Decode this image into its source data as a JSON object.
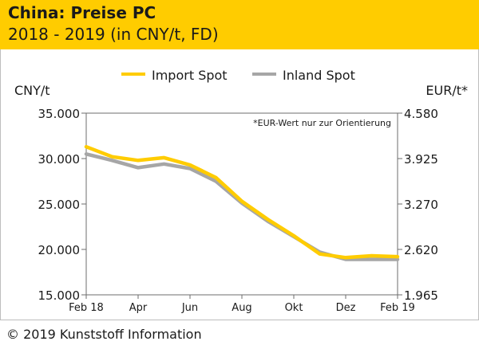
{
  "header": {
    "title": "China: Preise PC",
    "subtitle": "2018 - 2019 (in CNY/t, FD)"
  },
  "footer": {
    "credit": "© 2019 Kunststoff Information"
  },
  "chart_data": {
    "type": "line",
    "title": "China: Preise PC",
    "subtitle": "2018 - 2019 (in CNY/t, FD)",
    "ylabel_left": "CNY/t",
    "ylabel_right": "EUR/t*",
    "annotation": "*EUR-Wert nur zur Orientierung",
    "ylim": [
      15000,
      35000
    ],
    "y_ticks": [
      "35.000",
      "30.000",
      "25.000",
      "20.000",
      "15.000"
    ],
    "y_ticks_right": [
      "4.580",
      "3.925",
      "3.270",
      "2.620",
      "1.965"
    ],
    "x_ticks": [
      "Feb 18",
      "Apr",
      "Jun",
      "Aug",
      "Okt",
      "Dez",
      "Feb 19"
    ],
    "x_range_months": [
      0,
      12
    ],
    "legend_position": "top",
    "series": [
      {
        "name": "Import Spot",
        "color": "#ffcc00",
        "x": [
          0,
          1,
          2,
          3,
          4,
          5,
          6,
          7,
          8,
          9,
          10,
          11,
          12
        ],
        "values": [
          31300,
          30200,
          29800,
          30100,
          29300,
          27900,
          25300,
          23300,
          21500,
          19500,
          19100,
          19300,
          19200
        ]
      },
      {
        "name": "Inland Spot",
        "color": "#a6a6a6",
        "x": [
          0,
          1,
          2,
          3,
          4,
          5,
          6,
          7,
          8,
          9,
          10,
          11,
          12
        ],
        "values": [
          30500,
          29800,
          29000,
          29400,
          28900,
          27500,
          25100,
          23100,
          21400,
          19700,
          18900,
          18900,
          18900
        ]
      }
    ]
  }
}
